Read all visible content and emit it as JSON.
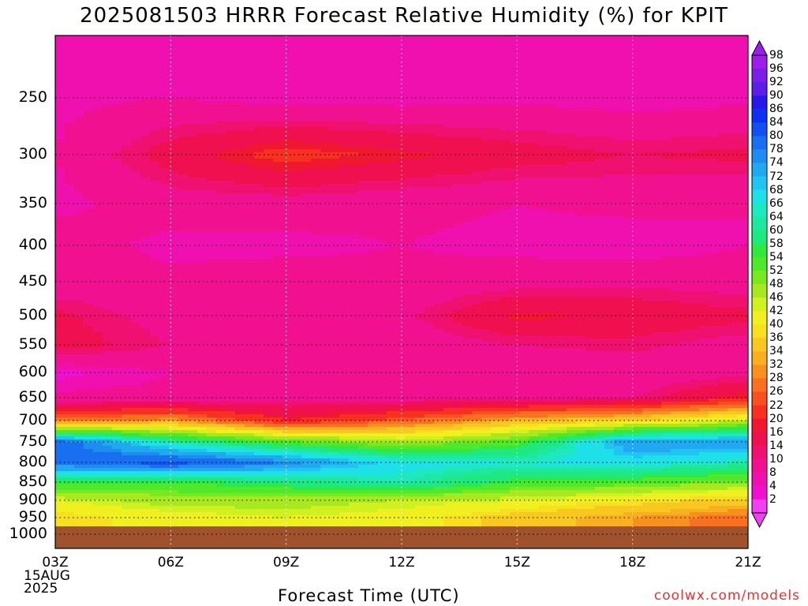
{
  "title": "2025081503 HRRR Forecast Relative Humidity (%) for KPIT",
  "credit": "coolwx.com/models",
  "chart_data": {
    "type": "heatmap",
    "title": "2025081503 HRRR Forecast Relative Humidity (%) for KPIT",
    "xlabel": "Forecast Time (UTC)",
    "ylabel": "",
    "x_ticks": [
      "03Z",
      "06Z",
      "09Z",
      "12Z",
      "15Z",
      "18Z",
      "21Z"
    ],
    "x_start_date": [
      "15AUG",
      "2025"
    ],
    "y_ticks": [
      250,
      300,
      350,
      400,
      450,
      500,
      550,
      600,
      650,
      700,
      750,
      800,
      850,
      900,
      950,
      1000
    ],
    "y_axis": "pressure (inverted, log-like)",
    "grid": true,
    "colorbar_labels": [
      98,
      96,
      92,
      90,
      86,
      84,
      80,
      78,
      74,
      72,
      68,
      66,
      64,
      60,
      58,
      54,
      52,
      48,
      46,
      42,
      40,
      36,
      34,
      32,
      28,
      26,
      22,
      20,
      16,
      14,
      10,
      8,
      4,
      2
    ],
    "colorbar_colors": [
      "#9c1ee8",
      "#7a1ee8",
      "#5a1ee8",
      "#2818e8",
      "#1030f0",
      "#1450f0",
      "#1870f0",
      "#1e8cf0",
      "#20a8f0",
      "#20c4f0",
      "#1ee0e8",
      "#1ee8c0",
      "#1ee8a0",
      "#1ee880",
      "#30e840",
      "#50e82a",
      "#7ae81e",
      "#a8e81e",
      "#d0f020",
      "#f0f020",
      "#f8e020",
      "#f8c820",
      "#f8b020",
      "#f89020",
      "#f87020",
      "#f85020",
      "#f83020",
      "#f01830",
      "#f01050",
      "#f01070",
      "#f01090",
      "#f010b0",
      "#f010d0",
      "#f040f0"
    ],
    "rows": [
      {
        "level": 200,
        "rh": [
          8,
          8,
          8,
          9,
          8,
          9,
          8
        ]
      },
      {
        "level": 250,
        "rh": [
          9,
          10,
          8,
          8,
          9,
          8,
          9
        ]
      },
      {
        "level": 300,
        "rh": [
          10,
          18,
          24,
          21,
          18,
          16,
          17
        ]
      },
      {
        "level": 350,
        "rh": [
          9,
          12,
          12,
          11,
          10,
          11,
          10
        ]
      },
      {
        "level": 400,
        "rh": [
          12,
          9,
          9,
          10,
          9,
          8,
          10
        ]
      },
      {
        "level": 450,
        "rh": [
          11,
          11,
          12,
          11,
          12,
          13,
          12
        ]
      },
      {
        "level": 500,
        "rh": [
          17,
          12,
          14,
          13,
          21,
          19,
          17
        ]
      },
      {
        "level": 550,
        "rh": [
          18,
          14,
          12,
          11,
          14,
          15,
          12
        ]
      },
      {
        "level": 600,
        "rh": [
          7,
          10,
          11,
          11,
          11,
          11,
          13
        ]
      },
      {
        "level": 650,
        "rh": [
          11,
          11,
          12,
          12,
          13,
          14,
          22
        ]
      },
      {
        "level": 700,
        "rh": [
          30,
          34,
          22,
          28,
          36,
          40,
          48
        ]
      },
      {
        "level": 750,
        "rh": [
          84,
          66,
          56,
          50,
          56,
          78,
          78
        ]
      },
      {
        "level": 800,
        "rh": [
          82,
          86,
          80,
          70,
          68,
          70,
          66
        ]
      },
      {
        "level": 850,
        "rh": [
          60,
          58,
          62,
          66,
          58,
          56,
          52
        ]
      },
      {
        "level": 900,
        "rh": [
          46,
          50,
          50,
          48,
          46,
          42,
          38
        ]
      },
      {
        "level": 950,
        "rh": [
          40,
          44,
          46,
          44,
          38,
          34,
          30
        ]
      }
    ],
    "below_ground_level": 1000,
    "below_ground_color": "#a0522d"
  }
}
